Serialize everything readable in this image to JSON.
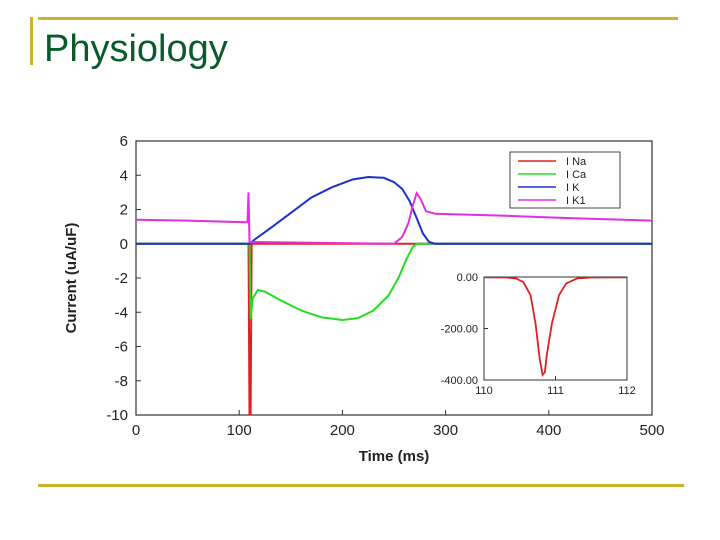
{
  "slide": {
    "title": "Physiology"
  },
  "chart_data": [
    {
      "type": "line",
      "title": "",
      "xlabel": "Time (ms)",
      "ylabel": "Current (uA/uF)",
      "xlim": [
        0,
        500
      ],
      "ylim": [
        -10,
        6
      ],
      "xticks": [
        0,
        100,
        200,
        300,
        400,
        500
      ],
      "yticks": [
        -10,
        -8,
        -6,
        -4,
        -2,
        0,
        2,
        4,
        6
      ],
      "grid": false,
      "legend": "top-right",
      "series": [
        {
          "name": "I Na",
          "color": "#e02020",
          "points": [
            [
              0,
              0
            ],
            [
              109,
              0
            ],
            [
              110,
              -10
            ],
            [
              111,
              -10
            ],
            [
              112,
              0
            ],
            [
              500,
              0
            ]
          ]
        },
        {
          "name": "I Ca",
          "color": "#22dd22",
          "points": [
            [
              0,
              0
            ],
            [
              110,
              0
            ],
            [
              111,
              -4.4
            ],
            [
              113,
              -3.2
            ],
            [
              118,
              -2.7
            ],
            [
              125,
              -2.8
            ],
            [
              140,
              -3.3
            ],
            [
              160,
              -3.9
            ],
            [
              180,
              -4.3
            ],
            [
              200,
              -4.45
            ],
            [
              215,
              -4.35
            ],
            [
              230,
              -3.9
            ],
            [
              245,
              -3.0
            ],
            [
              255,
              -1.9
            ],
            [
              262,
              -0.9
            ],
            [
              268,
              -0.2
            ],
            [
              272,
              0
            ],
            [
              500,
              0
            ]
          ]
        },
        {
          "name": "I K",
          "color": "#1a2fd0",
          "points": [
            [
              0,
              0
            ],
            [
              110,
              0
            ],
            [
              115,
              0.25
            ],
            [
              130,
              0.9
            ],
            [
              150,
              1.8
            ],
            [
              170,
              2.7
            ],
            [
              190,
              3.3
            ],
            [
              210,
              3.75
            ],
            [
              225,
              3.9
            ],
            [
              240,
              3.85
            ],
            [
              250,
              3.6
            ],
            [
              258,
              3.2
            ],
            [
              265,
              2.5
            ],
            [
              272,
              1.5
            ],
            [
              278,
              0.6
            ],
            [
              284,
              0.1
            ],
            [
              290,
              0
            ],
            [
              500,
              0
            ]
          ]
        },
        {
          "name": "I K1",
          "color": "#e030e0",
          "points": [
            [
              0,
              1.4
            ],
            [
              50,
              1.35
            ],
            [
              108,
              1.25
            ],
            [
              109,
              3.0
            ],
            [
              110,
              0.1
            ],
            [
              250,
              0
            ],
            [
              258,
              0.4
            ],
            [
              264,
              1.2
            ],
            [
              268,
              2.2
            ],
            [
              272,
              2.95
            ],
            [
              276,
              2.6
            ],
            [
              281,
              1.9
            ],
            [
              290,
              1.75
            ],
            [
              350,
              1.65
            ],
            [
              420,
              1.5
            ],
            [
              500,
              1.35
            ]
          ]
        }
      ]
    },
    {
      "type": "line",
      "title": "",
      "xlabel": "",
      "ylabel": "",
      "xlim": [
        110,
        112
      ],
      "ylim": [
        -400,
        0
      ],
      "xticks": [
        110,
        111,
        112
      ],
      "xtick_labels": [
        "110",
        "111",
        "112"
      ],
      "yticks": [
        0,
        -200,
        -400
      ],
      "ytick_labels": [
        "0.00",
        "-200.00",
        "-400.00"
      ],
      "grid": false,
      "series": [
        {
          "name": "",
          "color": "#e02020",
          "points": [
            [
              110,
              -1
            ],
            [
              110.3,
              -2
            ],
            [
              110.45,
              -6
            ],
            [
              110.55,
              -20
            ],
            [
              110.65,
              -70
            ],
            [
              110.72,
              -180
            ],
            [
              110.78,
              -320
            ],
            [
              110.82,
              -380
            ],
            [
              110.85,
              -370
            ],
            [
              110.88,
              -300
            ],
            [
              110.95,
              -180
            ],
            [
              111.05,
              -70
            ],
            [
              111.15,
              -25
            ],
            [
              111.3,
              -6
            ],
            [
              111.5,
              -2
            ],
            [
              112,
              -1
            ]
          ]
        }
      ]
    }
  ]
}
